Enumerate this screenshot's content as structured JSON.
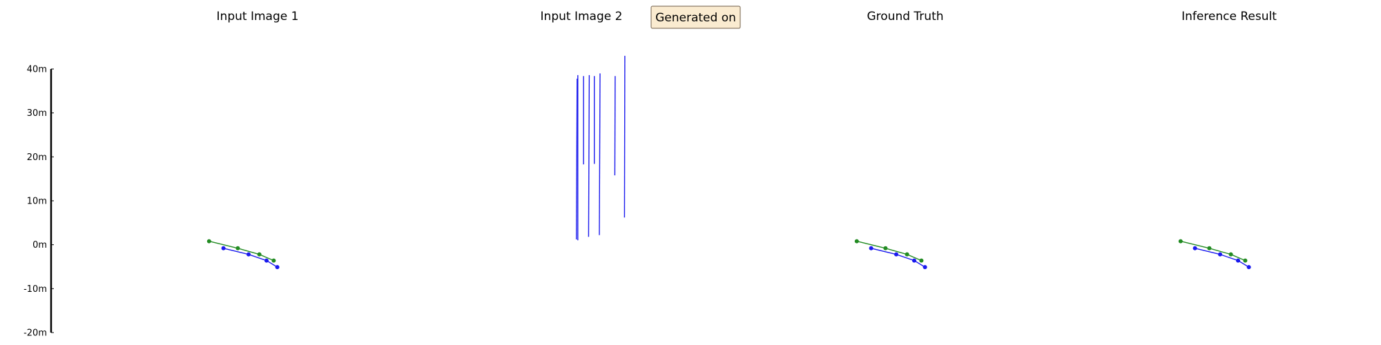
{
  "chart_data": {
    "type": "line",
    "y_unit": "m",
    "ylim": [
      -20,
      40
    ],
    "y_ticks": [
      "40m",
      "30m",
      "20m",
      "10m",
      "0m",
      "-10m",
      "-20m"
    ],
    "y_tick_values": [
      40,
      30,
      20,
      10,
      0,
      -10,
      -20
    ],
    "grid": false,
    "badge": "Generated on",
    "colors": {
      "green": "#228b22",
      "blue": "#1a1aee",
      "badge_bg": "#faebd0",
      "badge_border": "#8a7a66"
    },
    "panels": [
      {
        "title": "Input Image 1",
        "series": [
          {
            "color": "green",
            "points": [
              [
                -13.5,
                0.8
              ],
              [
                -5.5,
                -0.8
              ],
              [
                0.5,
                -2.2
              ],
              [
                4.5,
                -3.6
              ]
            ]
          },
          {
            "color": "blue",
            "points": [
              [
                -9.5,
                -0.8
              ],
              [
                -2.5,
                -2.2
              ],
              [
                2.5,
                -3.6
              ],
              [
                5.5,
                -5.1
              ]
            ]
          }
        ]
      },
      {
        "title": "Input Image 2",
        "lines": [
          [
            [
              -1.2,
              37.8
            ],
            [
              -1.4,
              1.2
            ]
          ],
          [
            [
              -1.0,
              38.6
            ],
            [
              -1.0,
              1.0
            ]
          ],
          [
            [
              0.6,
              38.4
            ],
            [
              0.6,
              18.3
            ]
          ],
          [
            [
              2.2,
              38.6
            ],
            [
              2.0,
              1.8
            ]
          ],
          [
            [
              3.6,
              38.4
            ],
            [
              3.6,
              18.4
            ]
          ],
          [
            [
              5.2,
              39.0
            ],
            [
              5.0,
              2.2
            ]
          ],
          [
            [
              9.4,
              38.4
            ],
            [
              9.3,
              15.8
            ]
          ],
          [
            [
              12.1,
              43.0
            ],
            [
              12.0,
              6.2
            ]
          ]
        ]
      },
      {
        "title": "Ground Truth",
        "series": [
          {
            "color": "green",
            "points": [
              [
                -13.5,
                0.8
              ],
              [
                -5.5,
                -0.8
              ],
              [
                0.5,
                -2.2
              ],
              [
                4.5,
                -3.6
              ]
            ]
          },
          {
            "color": "blue",
            "points": [
              [
                -9.5,
                -0.8
              ],
              [
                -2.5,
                -2.2
              ],
              [
                2.5,
                -3.6
              ],
              [
                5.5,
                -5.1
              ]
            ]
          }
        ]
      },
      {
        "title": "Inference Result",
        "series": [
          {
            "color": "green",
            "points": [
              [
                -13.5,
                0.8
              ],
              [
                -5.5,
                -0.8
              ],
              [
                0.5,
                -2.2
              ],
              [
                4.5,
                -3.6
              ]
            ]
          },
          {
            "color": "blue",
            "points": [
              [
                -9.5,
                -0.8
              ],
              [
                -2.5,
                -2.2
              ],
              [
                2.5,
                -3.6
              ],
              [
                5.5,
                -5.1
              ]
            ]
          }
        ]
      }
    ]
  }
}
